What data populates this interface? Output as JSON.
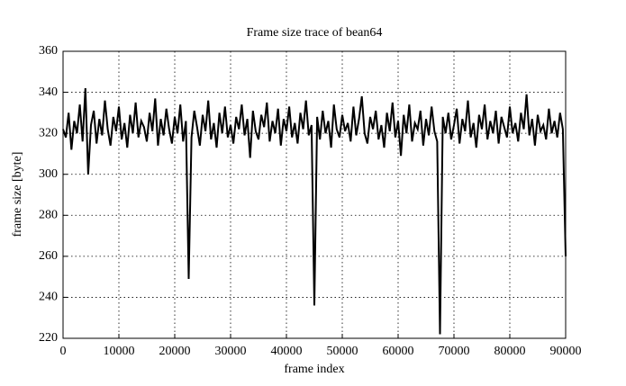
{
  "chart_data": {
    "type": "line",
    "title": "Frame size trace of bean64",
    "x_label": "frame index",
    "y_label": "frame size [byte]",
    "xlim": [
      0,
      90000
    ],
    "xticks": [
      0,
      10000,
      20000,
      30000,
      40000,
      50000,
      60000,
      70000,
      80000,
      90000
    ],
    "ylim": [
      220,
      360
    ],
    "yticks": [
      220,
      240,
      260,
      280,
      300,
      320,
      340,
      360
    ],
    "grid": true,
    "x": [
      0,
      500,
      1000,
      1500,
      2000,
      2500,
      3000,
      3500,
      4000,
      4500,
      5000,
      5500,
      6000,
      6500,
      7000,
      7500,
      8000,
      8500,
      9000,
      9500,
      10000,
      10500,
      11000,
      11500,
      12000,
      12500,
      13000,
      13500,
      14000,
      14500,
      15000,
      15500,
      16000,
      16500,
      17000,
      17500,
      18000,
      18500,
      19000,
      19500,
      20000,
      20500,
      21000,
      21500,
      22000,
      22500,
      23000,
      23500,
      24000,
      24500,
      25000,
      25500,
      26000,
      26500,
      27000,
      27500,
      28000,
      28500,
      29000,
      29500,
      30000,
      30500,
      31000,
      31500,
      32000,
      32500,
      33000,
      33500,
      34000,
      34500,
      35000,
      35500,
      36000,
      36500,
      37000,
      37500,
      38000,
      38500,
      39000,
      39500,
      40000,
      40500,
      41000,
      41500,
      42000,
      42500,
      43000,
      43500,
      44000,
      44500,
      45000,
      45500,
      46000,
      46500,
      47000,
      47500,
      48000,
      48500,
      49000,
      49500,
      50000,
      50500,
      51000,
      51500,
      52000,
      52500,
      53000,
      53500,
      54000,
      54500,
      55000,
      55500,
      56000,
      56500,
      57000,
      57500,
      58000,
      58500,
      59000,
      59500,
      60000,
      60500,
      61000,
      61500,
      62000,
      62500,
      63000,
      63500,
      64000,
      64500,
      65000,
      65500,
      66000,
      66500,
      67000,
      67500,
      68000,
      68500,
      69000,
      69500,
      70000,
      70500,
      71000,
      71500,
      72000,
      72500,
      73000,
      73500,
      74000,
      74500,
      75000,
      75500,
      76000,
      76500,
      77000,
      77500,
      78000,
      78500,
      79000,
      79500,
      80000,
      80500,
      81000,
      81500,
      82000,
      82500,
      83000,
      83500,
      84000,
      84500,
      85000,
      85500,
      86000,
      86500,
      87000,
      87500,
      88000,
      88500,
      89000,
      89500,
      90000
    ],
    "series": [
      {
        "color": "#000000",
        "values": [
          322,
          318,
          330,
          312,
          326,
          320,
          334,
          316,
          342,
          300,
          324,
          331,
          315,
          327,
          319,
          336,
          322,
          314,
          328,
          321,
          333,
          317,
          325,
          313,
          329,
          320,
          335,
          318,
          326,
          323,
          316,
          330,
          321,
          337,
          314,
          327,
          319,
          332,
          322,
          315,
          328,
          320,
          334,
          316,
          326,
          249,
          318,
          331,
          323,
          314,
          329,
          321,
          336,
          317,
          325,
          313,
          330,
          320,
          333,
          318,
          324,
          315,
          328,
          322,
          334,
          319,
          327,
          308,
          331,
          321,
          317,
          329,
          323,
          335,
          316,
          326,
          320,
          332,
          314,
          327,
          321,
          333,
          318,
          325,
          315,
          330,
          322,
          336,
          319,
          324,
          236,
          328,
          317,
          331,
          320,
          326,
          313,
          334,
          322,
          318,
          329,
          321,
          325,
          316,
          333,
          319,
          327,
          338,
          320,
          315,
          328,
          322,
          331,
          317,
          324,
          313,
          330,
          321,
          335,
          318,
          326,
          309,
          329,
          320,
          334,
          316,
          325,
          322,
          331,
          314,
          327,
          319,
          333,
          321,
          316,
          222,
          328,
          320,
          330,
          317,
          324,
          332,
          315,
          327,
          321,
          336,
          318,
          325,
          313,
          329,
          322,
          334,
          317,
          326,
          320,
          331,
          315,
          328,
          323,
          318,
          333,
          320,
          325,
          316,
          330,
          322,
          339,
          319,
          327,
          314,
          329,
          321,
          324,
          317,
          332,
          320,
          326,
          318,
          330,
          322,
          260
        ]
      }
    ]
  }
}
